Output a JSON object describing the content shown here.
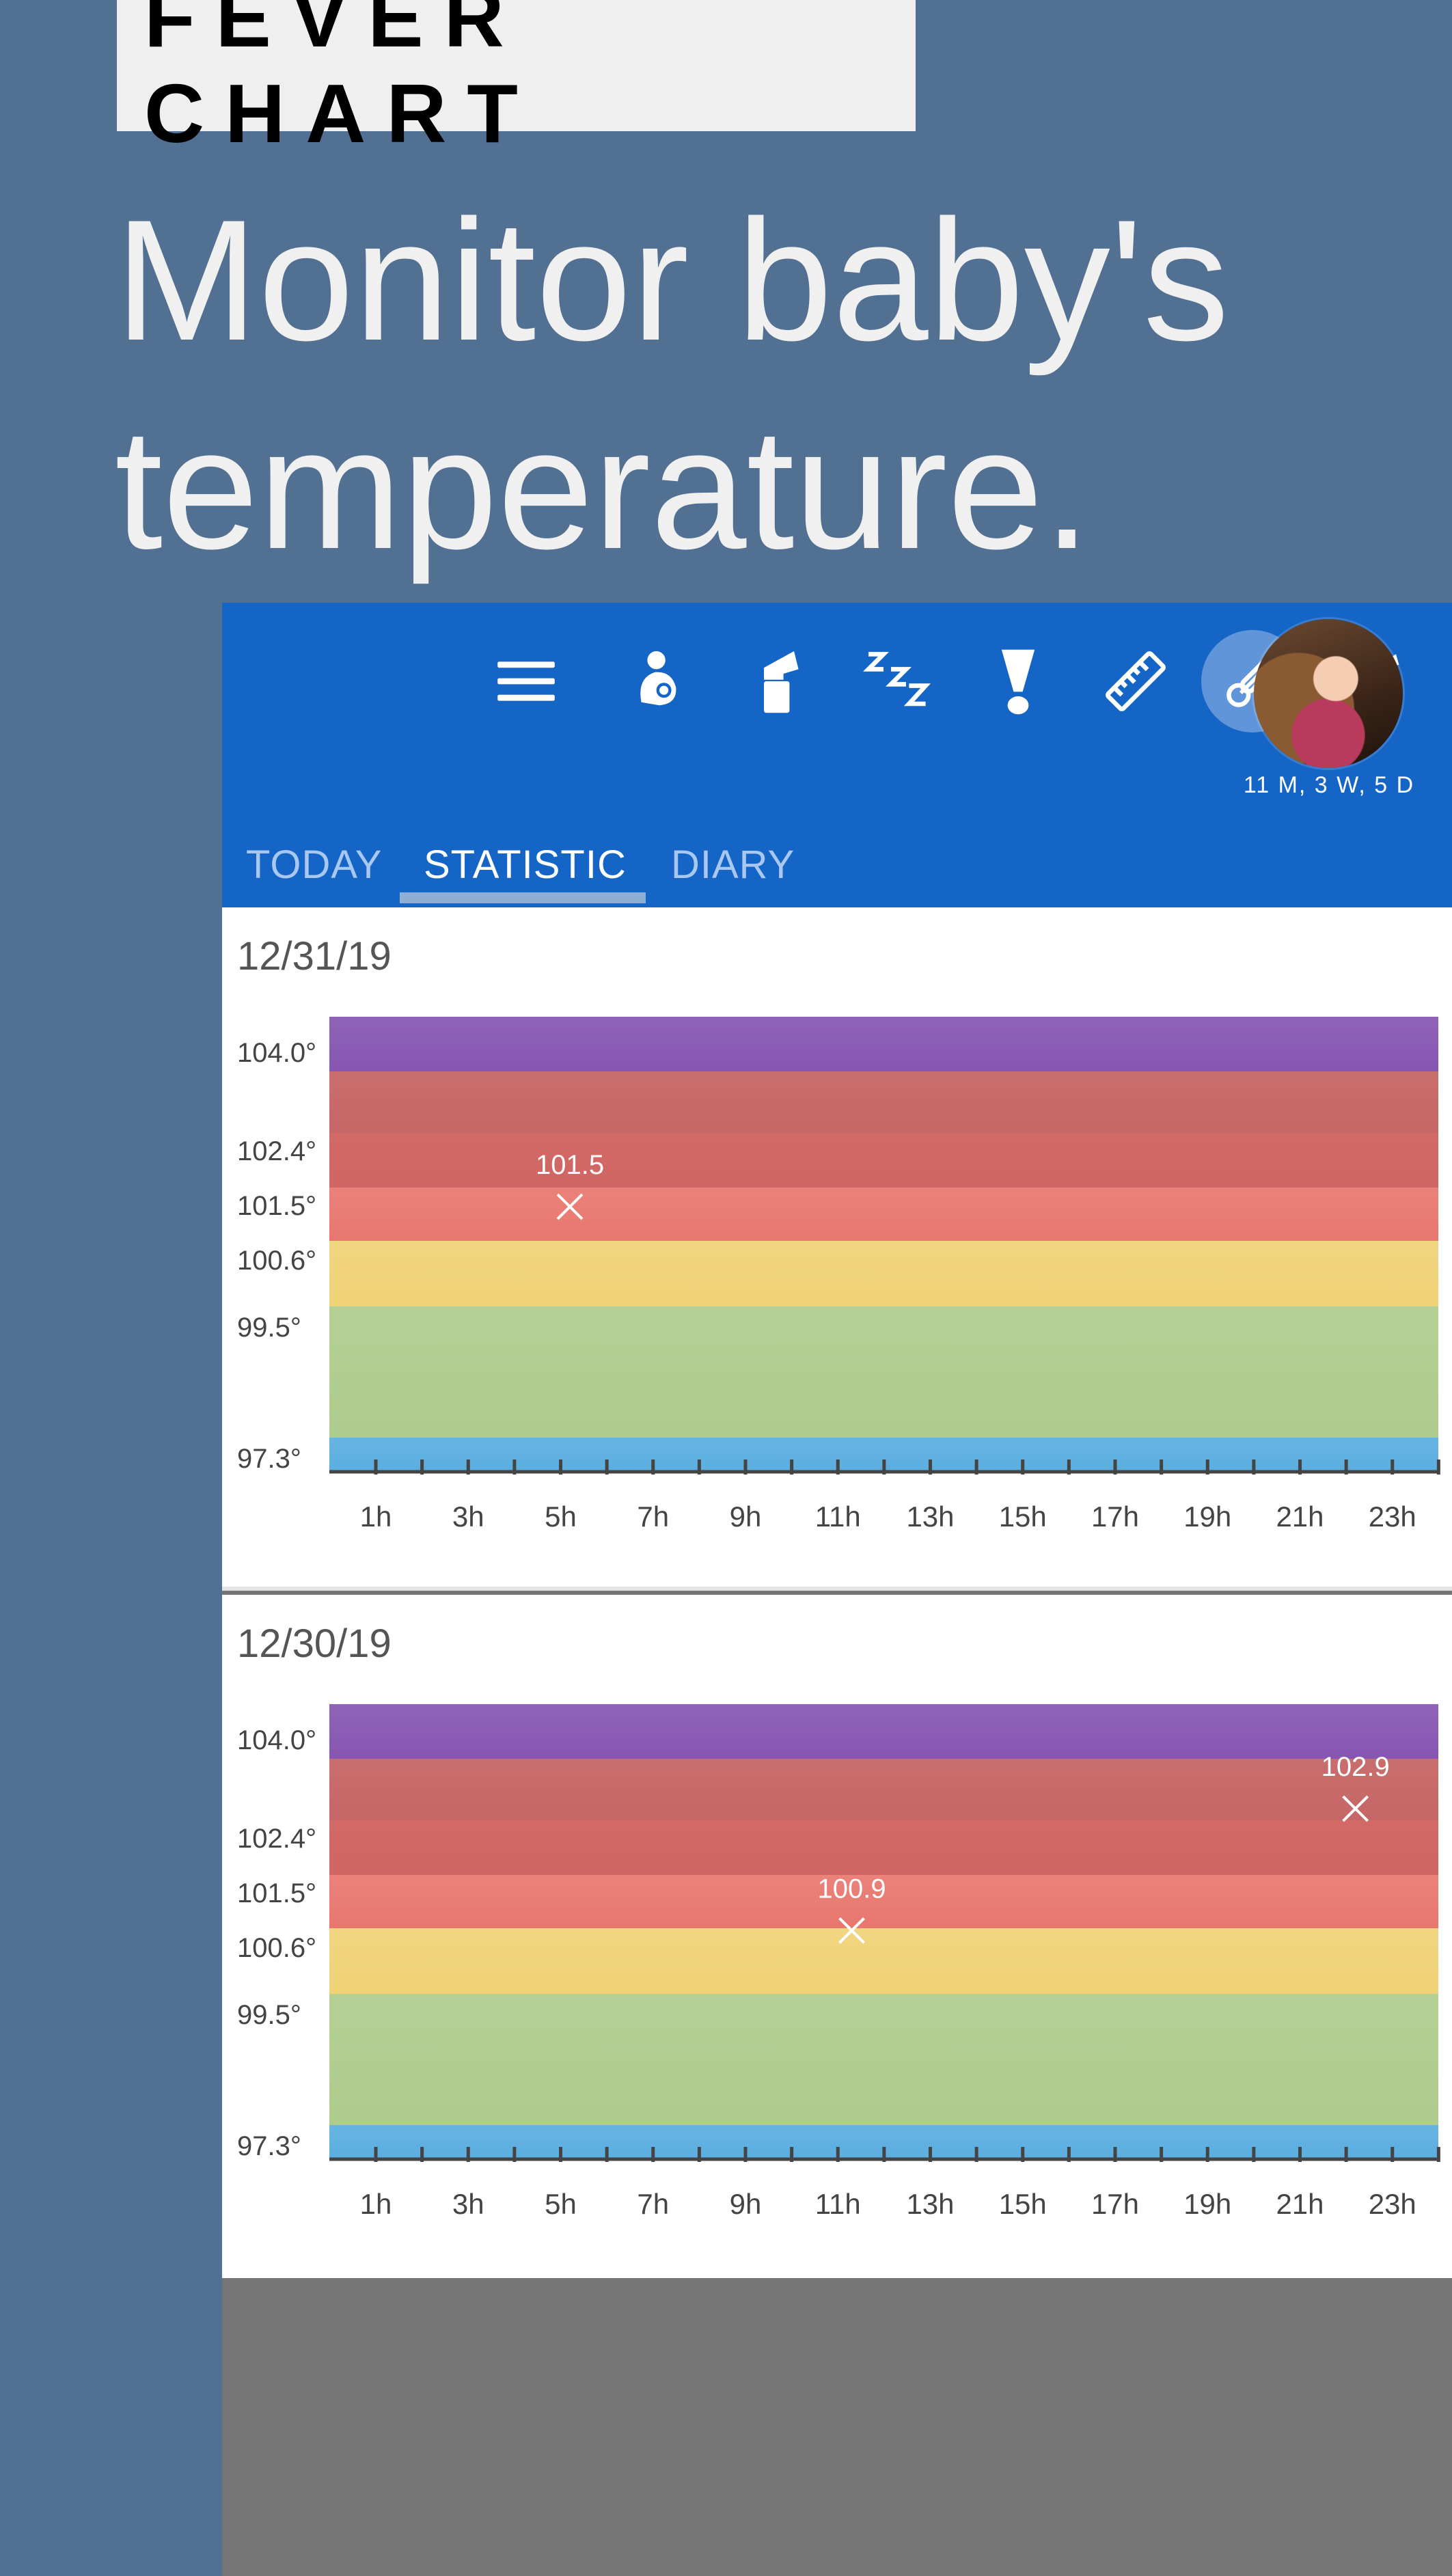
{
  "banner": {
    "label": "FEVER CHART"
  },
  "headline": {
    "line1": "Monitor baby's",
    "line2": "temperature."
  },
  "topbar": {
    "icons": [
      "menu-icon",
      "feeding-icon",
      "pump-icon",
      "sleep-icon",
      "alert-icon",
      "ruler-icon",
      "thermometer-icon",
      "summary-icon"
    ],
    "active_icon": "thermometer-icon",
    "accent_color": "#1565c7",
    "age": "11 M, 3 W, 5 D"
  },
  "tabs": [
    {
      "label": "TODAY",
      "active": false
    },
    {
      "label": "STATISTIC",
      "active": true
    },
    {
      "label": "DIARY",
      "active": false
    }
  ],
  "chart_data": [
    {
      "type": "scatter",
      "title": "12/31/19",
      "y_tick_labels": [
        "104.0°",
        "102.4°",
        "101.5°",
        "100.6°",
        "99.5°",
        "97.3°"
      ],
      "x_tick_labels": [
        "1h",
        "3h",
        "5h",
        "7h",
        "9h",
        "11h",
        "13h",
        "15h",
        "17h",
        "19h",
        "21h",
        "23h"
      ],
      "points": [
        {
          "x": 4.2,
          "y": 101.5,
          "label": "101.5"
        }
      ],
      "band_colors": [
        "#8656b2",
        "#c46161",
        "#e8776e",
        "#f0d276",
        "#aecc8c",
        "#5aaee0"
      ]
    },
    {
      "type": "scatter",
      "title": "12/30/19",
      "y_tick_labels": [
        "104.0°",
        "102.4°",
        "101.5°",
        "100.6°",
        "99.5°",
        "97.3°"
      ],
      "x_tick_labels": [
        "1h",
        "3h",
        "5h",
        "7h",
        "9h",
        "11h",
        "13h",
        "15h",
        "17h",
        "19h",
        "21h",
        "23h"
      ],
      "points": [
        {
          "x": 10.3,
          "y": 100.9,
          "label": "100.9"
        },
        {
          "x": 21.2,
          "y": 102.9,
          "label": "102.9"
        }
      ],
      "band_colors": [
        "#8656b2",
        "#c46161",
        "#e8776e",
        "#f0d276",
        "#aecc8c",
        "#5aaee0"
      ]
    }
  ]
}
